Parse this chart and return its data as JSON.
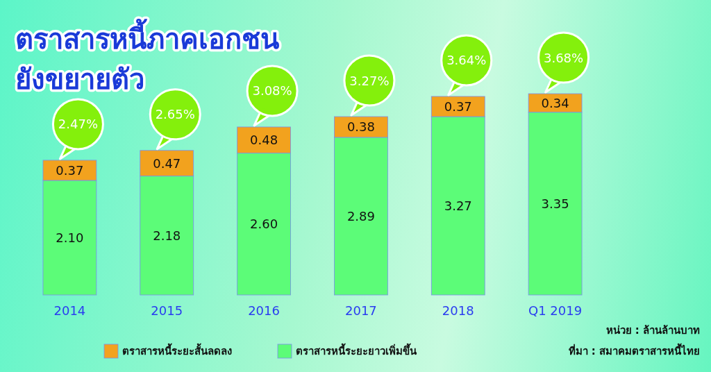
{
  "chart_data": {
    "type": "bar",
    "title": "ตราสารหนี้ภาคเอกชน",
    "subtitle": "ยังขยายตัว",
    "categories": [
      "2014",
      "2015",
      "2016",
      "2017",
      "2018",
      "Q1 2019"
    ],
    "series": [
      {
        "name": "ตราสารหนี้ระยะยาวเพิ่มขึ้น",
        "color": "#5cfc78",
        "values": [
          2.1,
          2.18,
          2.6,
          2.89,
          3.27,
          3.35
        ],
        "value_labels": [
          "2.10",
          "2.18",
          "2.60",
          "2.89",
          "3.27",
          "3.35"
        ]
      },
      {
        "name": "ตราสารหนี้ระยะสั้นลดลง",
        "color": "#f2a21e",
        "values": [
          0.37,
          0.47,
          0.48,
          0.38,
          0.37,
          0.34
        ],
        "value_labels": [
          "0.37",
          "0.47",
          "0.48",
          "0.38",
          "0.37",
          "0.34"
        ]
      }
    ],
    "stacked": true,
    "totals": [
      "2.47%",
      "2.65%",
      "3.08%",
      "3.27%",
      "3.64%",
      "3.68%"
    ],
    "legend": "bottom",
    "annotations": [
      "หน่วย : ล้านล้านบาท",
      "ที่มา : สมาคมตราสารหนี้ไทย"
    ]
  }
}
